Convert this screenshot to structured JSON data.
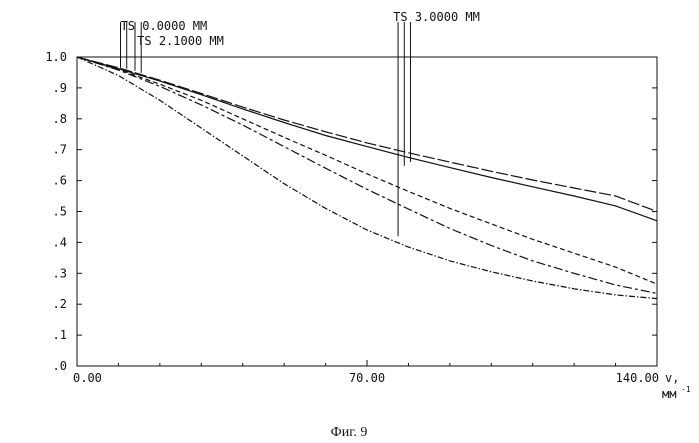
{
  "caption": "Фиг. 9",
  "chart_data": {
    "type": "line",
    "title": "",
    "xlabel": "v,",
    "xlabel_unit": "мм",
    "xlabel_unit_sup": "-1",
    "xlim": [
      0,
      140
    ],
    "ylim": [
      0,
      1
    ],
    "x_ticks": [
      {
        "value": 0,
        "label": "0.00"
      },
      {
        "value": 70,
        "label": "70.00"
      },
      {
        "value": 140,
        "label": "140.00"
      }
    ],
    "y_ticks": [
      {
        "value": 1.0,
        "label": "1.0"
      },
      {
        "value": 0.9,
        "label": ".9"
      },
      {
        "value": 0.8,
        "label": ".8"
      },
      {
        "value": 0.7,
        "label": ".7"
      },
      {
        "value": 0.6,
        "label": ".6"
      },
      {
        "value": 0.5,
        "label": ".5"
      },
      {
        "value": 0.4,
        "label": ".4"
      },
      {
        "value": 0.3,
        "label": ".3"
      },
      {
        "value": 0.2,
        "label": ".2"
      },
      {
        "value": 0.1,
        "label": ".1"
      },
      {
        "value": 0.0,
        "label": ".0"
      }
    ],
    "annotations": [
      {
        "label": "TS 0.0000 MM",
        "x": 11
      },
      {
        "label": "TS 2.1000 MM",
        "x": 15
      },
      {
        "label": "TS 3.0000 MM",
        "x": 78
      }
    ],
    "marker_lines": [
      {
        "x": 10.5,
        "y": 0.965
      },
      {
        "x": 12.0,
        "y": 0.962
      },
      {
        "x": 14.0,
        "y": 0.955
      },
      {
        "x": 15.5,
        "y": 0.948
      },
      {
        "x": 77.5,
        "y": 0.42
      },
      {
        "x": 79.0,
        "y": 0.648
      },
      {
        "x": 80.5,
        "y": 0.66
      }
    ],
    "series": [
      {
        "style": "long-dash",
        "x": [
          0,
          10,
          20,
          30,
          40,
          50,
          60,
          70,
          80,
          90,
          100,
          110,
          120,
          130,
          140
        ],
        "y": [
          1.0,
          0.965,
          0.925,
          0.882,
          0.838,
          0.796,
          0.758,
          0.722,
          0.69,
          0.66,
          0.63,
          0.602,
          0.576,
          0.55,
          0.5
        ]
      },
      {
        "style": "solid",
        "x": [
          0,
          10,
          20,
          30,
          40,
          50,
          60,
          70,
          80,
          90,
          100,
          110,
          120,
          130,
          140
        ],
        "y": [
          1.0,
          0.962,
          0.922,
          0.878,
          0.832,
          0.788,
          0.746,
          0.71,
          0.675,
          0.642,
          0.61,
          0.58,
          0.55,
          0.518,
          0.47
        ]
      },
      {
        "style": "short-dash",
        "x": [
          0,
          10,
          20,
          30,
          40,
          50,
          60,
          70,
          80,
          90,
          100,
          110,
          120,
          130,
          140
        ],
        "y": [
          1.0,
          0.96,
          0.912,
          0.86,
          0.8,
          0.74,
          0.682,
          0.622,
          0.565,
          0.51,
          0.46,
          0.41,
          0.365,
          0.32,
          0.265
        ]
      },
      {
        "style": "long-short-dash",
        "x": [
          0,
          10,
          20,
          30,
          40,
          50,
          60,
          70,
          80,
          90,
          100,
          110,
          120,
          130,
          140
        ],
        "y": [
          1.0,
          0.958,
          0.905,
          0.845,
          0.78,
          0.71,
          0.64,
          0.572,
          0.508,
          0.445,
          0.39,
          0.34,
          0.3,
          0.262,
          0.235
        ]
      },
      {
        "style": "dash-dot",
        "x": [
          0,
          10,
          20,
          30,
          40,
          50,
          60,
          70,
          80,
          90,
          100,
          110,
          120,
          130,
          140
        ],
        "y": [
          1.0,
          0.94,
          0.86,
          0.77,
          0.68,
          0.59,
          0.51,
          0.44,
          0.385,
          0.34,
          0.305,
          0.275,
          0.25,
          0.23,
          0.218
        ]
      }
    ]
  }
}
